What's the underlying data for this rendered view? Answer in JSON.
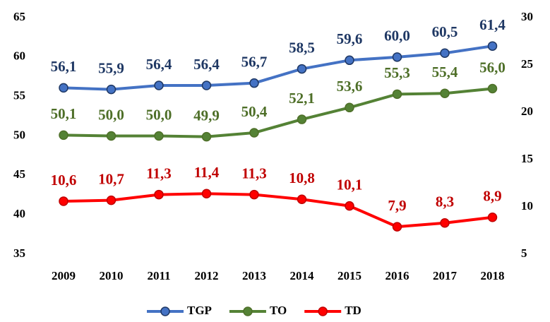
{
  "chart_data": {
    "type": "line",
    "categories": [
      "2009",
      "2010",
      "2011",
      "2012",
      "2013",
      "2014",
      "2015",
      "2016",
      "2017",
      "2018"
    ],
    "series": [
      {
        "name": "TGP",
        "color": "#4472c4",
        "label_color": "#1f3864",
        "axis": "y",
        "values": [
          56.1,
          55.9,
          56.4,
          56.4,
          56.7,
          58.5,
          59.6,
          60.0,
          60.5,
          61.4
        ],
        "value_labels": [
          "56,1",
          "55,9",
          "56,4",
          "56,4",
          "56,7",
          "58,5",
          "59,6",
          "60,0",
          "60,5",
          "61,4"
        ]
      },
      {
        "name": "TO",
        "color": "#548235",
        "label_color": "#4e6f28",
        "axis": "y",
        "values": [
          50.1,
          50.0,
          50.0,
          49.9,
          50.4,
          52.1,
          53.6,
          55.3,
          55.4,
          56.0
        ],
        "value_labels": [
          "50,1",
          "50,0",
          "50,0",
          "49,9",
          "50,4",
          "52,1",
          "53,6",
          "55,3",
          "55,4",
          "56,0"
        ]
      },
      {
        "name": "TD",
        "color": "#ff0000",
        "label_color": "#c00000",
        "axis": "y2",
        "values": [
          10.6,
          10.7,
          11.3,
          11.4,
          11.3,
          10.8,
          10.1,
          7.9,
          8.3,
          8.9
        ],
        "value_labels": [
          "10,6",
          "10,7",
          "11,3",
          "11,4",
          "11,3",
          "10,8",
          "10,1",
          "7,9",
          "8,3",
          "8,9"
        ]
      }
    ],
    "ylim": [
      35,
      65
    ],
    "yticks": [
      35,
      40,
      45,
      50,
      55,
      60,
      65
    ],
    "y2lim": [
      5,
      30
    ],
    "y2ticks": [
      5,
      10,
      15,
      20,
      25,
      30
    ],
    "grid": false,
    "legend": "bottom"
  }
}
